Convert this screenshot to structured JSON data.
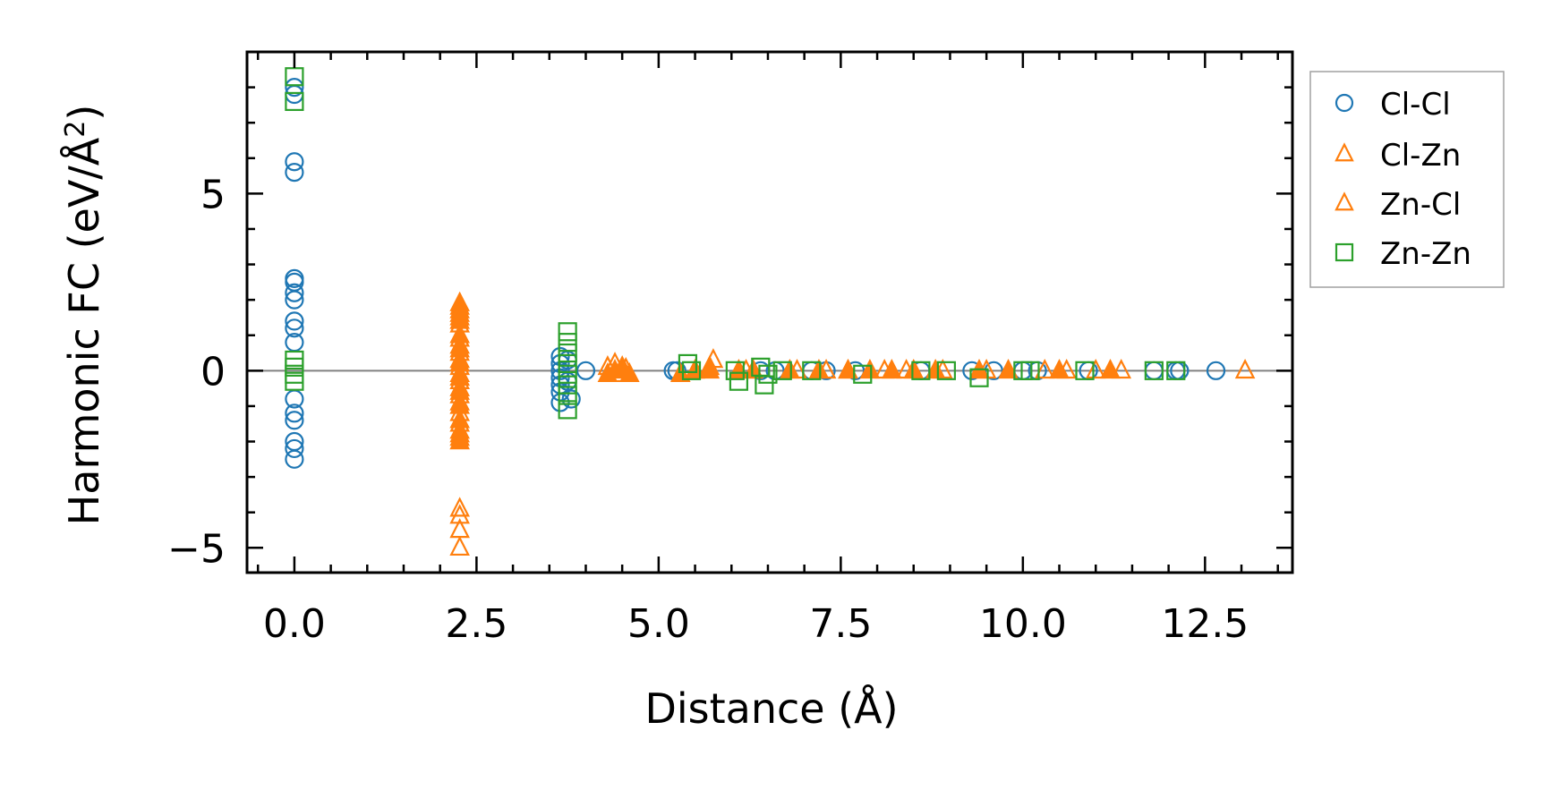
{
  "chart_data": {
    "type": "scatter",
    "title": "",
    "xlabel": "Distance (Å)",
    "ylabel_main": "Harmonic FC (eV/Å",
    "ylabel_sup": "2",
    "ylabel_end": ")",
    "xlim": [
      -0.65,
      13.7
    ],
    "ylim": [
      -5.7,
      9.0
    ],
    "xticks": [
      0.0,
      2.5,
      5.0,
      7.5,
      10.0,
      12.5
    ],
    "xtick_labels": [
      "0.0",
      "2.5",
      "5.0",
      "7.5",
      "10.0",
      "12.5"
    ],
    "yticks": [
      -5,
      0,
      5
    ],
    "ytick_labels": [
      "−5",
      "0",
      "5"
    ],
    "zero_line": 0,
    "legend_position": "outside-top-right",
    "colors": {
      "blue": "#1f77b4",
      "orange": "#ff7f0e",
      "green": "#2ca02c",
      "zero_line": "#808080"
    },
    "series": [
      {
        "name": "Cl-Cl",
        "marker": "circle",
        "color": "#1f77b4",
        "points": [
          [
            0.0,
            8.0
          ],
          [
            0.0,
            7.8
          ],
          [
            0.0,
            5.9
          ],
          [
            0.0,
            5.6
          ],
          [
            0.0,
            2.6
          ],
          [
            0.0,
            2.5
          ],
          [
            0.0,
            2.2
          ],
          [
            0.0,
            2.0
          ],
          [
            0.0,
            1.4
          ],
          [
            0.0,
            1.2
          ],
          [
            0.0,
            0.8
          ],
          [
            0.0,
            -0.8
          ],
          [
            0.0,
            -1.2
          ],
          [
            0.0,
            -1.4
          ],
          [
            0.0,
            -2.0
          ],
          [
            0.0,
            -2.2
          ],
          [
            0.0,
            -2.5
          ],
          [
            3.65,
            0.4
          ],
          [
            3.65,
            0.2
          ],
          [
            3.65,
            0.0
          ],
          [
            3.65,
            -0.2
          ],
          [
            3.65,
            -0.4
          ],
          [
            3.65,
            -0.6
          ],
          [
            3.65,
            -0.9
          ],
          [
            3.75,
            0.3
          ],
          [
            3.75,
            -0.3
          ],
          [
            3.8,
            -0.8
          ],
          [
            4.0,
            0.0
          ],
          [
            5.2,
            0.0
          ],
          [
            5.25,
            0.0
          ],
          [
            6.4,
            0.0
          ],
          [
            6.6,
            0.0
          ],
          [
            7.1,
            0.0
          ],
          [
            7.3,
            0.0
          ],
          [
            7.7,
            0.0
          ],
          [
            8.6,
            0.0
          ],
          [
            9.3,
            0.0
          ],
          [
            9.6,
            0.0
          ],
          [
            10.0,
            0.0
          ],
          [
            10.2,
            0.0
          ],
          [
            10.9,
            0.0
          ],
          [
            11.8,
            0.0
          ],
          [
            12.1,
            0.0
          ],
          [
            12.15,
            0.0
          ],
          [
            12.65,
            0.0
          ]
        ]
      },
      {
        "name": "Cl-Zn",
        "marker": "triangle",
        "color": "#ff7f0e",
        "points": [
          [
            2.27,
            1.9
          ],
          [
            2.27,
            1.7
          ],
          [
            2.27,
            1.5
          ],
          [
            2.27,
            1.3
          ],
          [
            2.27,
            0.9
          ],
          [
            2.27,
            0.7
          ],
          [
            2.27,
            0.5
          ],
          [
            2.27,
            0.3
          ],
          [
            2.27,
            0.1
          ],
          [
            2.27,
            -0.1
          ],
          [
            2.27,
            -0.3
          ],
          [
            2.27,
            -0.5
          ],
          [
            2.27,
            -0.7
          ],
          [
            2.27,
            -0.9
          ],
          [
            2.27,
            -1.2
          ],
          [
            2.27,
            -1.5
          ],
          [
            2.27,
            -1.7
          ],
          [
            2.27,
            -1.9
          ],
          [
            2.27,
            -3.9
          ],
          [
            2.27,
            -4.1
          ],
          [
            2.27,
            -4.5
          ],
          [
            2.27,
            -5.0
          ],
          [
            4.3,
            0.1
          ],
          [
            4.4,
            0.2
          ],
          [
            4.5,
            -0.1
          ],
          [
            4.55,
            0.05
          ],
          [
            5.5,
            0.0
          ],
          [
            5.7,
            0.1
          ],
          [
            5.75,
            0.3
          ],
          [
            6.2,
            0.0
          ],
          [
            6.9,
            0.0
          ],
          [
            7.3,
            0.0
          ],
          [
            7.6,
            0.0
          ],
          [
            8.1,
            0.0
          ],
          [
            8.4,
            0.0
          ],
          [
            8.9,
            0.0
          ],
          [
            9.5,
            0.0
          ],
          [
            10.3,
            0.0
          ],
          [
            10.6,
            0.0
          ],
          [
            11.0,
            0.0
          ],
          [
            11.35,
            0.0
          ],
          [
            13.05,
            0.0
          ]
        ]
      },
      {
        "name": "Zn-Cl",
        "marker": "triangle-filled",
        "color": "#ff7f0e",
        "points": [
          [
            2.27,
            1.8
          ],
          [
            2.27,
            1.6
          ],
          [
            2.27,
            1.4
          ],
          [
            2.27,
            1.0
          ],
          [
            2.27,
            0.6
          ],
          [
            2.27,
            0.2
          ],
          [
            2.27,
            -0.2
          ],
          [
            2.27,
            -0.6
          ],
          [
            2.27,
            -1.0
          ],
          [
            2.27,
            -1.4
          ],
          [
            2.27,
            -1.8
          ],
          [
            2.27,
            -2.0
          ],
          [
            4.3,
            -0.1
          ],
          [
            4.4,
            0.0
          ],
          [
            4.5,
            0.1
          ],
          [
            4.6,
            -0.1
          ],
          [
            5.3,
            -0.1
          ],
          [
            5.5,
            0.0
          ],
          [
            5.7,
            0.0
          ],
          [
            6.1,
            0.0
          ],
          [
            6.3,
            0.0
          ],
          [
            6.8,
            0.0
          ],
          [
            7.2,
            0.0
          ],
          [
            7.6,
            0.0
          ],
          [
            7.9,
            0.0
          ],
          [
            8.2,
            0.0
          ],
          [
            8.5,
            0.0
          ],
          [
            8.8,
            0.0
          ],
          [
            9.4,
            0.0
          ],
          [
            9.8,
            0.0
          ],
          [
            10.5,
            0.0
          ],
          [
            11.2,
            0.0
          ]
        ]
      },
      {
        "name": "Zn-Zn",
        "marker": "square",
        "color": "#2ca02c",
        "points": [
          [
            0.0,
            8.3
          ],
          [
            0.0,
            7.6
          ],
          [
            0.0,
            0.3
          ],
          [
            0.0,
            0.1
          ],
          [
            0.0,
            -0.1
          ],
          [
            0.0,
            -0.3
          ],
          [
            3.75,
            1.1
          ],
          [
            3.75,
            0.8
          ],
          [
            3.75,
            0.5
          ],
          [
            3.75,
            0.2
          ],
          [
            3.75,
            -0.1
          ],
          [
            3.75,
            -0.4
          ],
          [
            3.75,
            -0.7
          ],
          [
            3.75,
            -1.1
          ],
          [
            5.4,
            0.2
          ],
          [
            5.45,
            0.0
          ],
          [
            6.05,
            0.0
          ],
          [
            6.1,
            -0.3
          ],
          [
            6.4,
            0.1
          ],
          [
            6.45,
            -0.4
          ],
          [
            6.5,
            -0.1
          ],
          [
            6.7,
            0.0
          ],
          [
            7.1,
            0.0
          ],
          [
            7.8,
            -0.1
          ],
          [
            8.6,
            0.0
          ],
          [
            8.95,
            0.0
          ],
          [
            9.4,
            -0.2
          ],
          [
            10.0,
            0.0
          ],
          [
            10.1,
            0.0
          ],
          [
            10.85,
            0.0
          ],
          [
            11.8,
            0.0
          ],
          [
            12.1,
            0.0
          ]
        ]
      }
    ],
    "legend": [
      {
        "label": "Cl-Cl",
        "marker": "circle",
        "color": "#1f77b4"
      },
      {
        "label": "Cl-Zn",
        "marker": "triangle",
        "color": "#ff7f0e"
      },
      {
        "label": "Zn-Cl",
        "marker": "triangle",
        "color": "#ff7f0e"
      },
      {
        "label": "Zn-Zn",
        "marker": "square",
        "color": "#2ca02c"
      }
    ]
  }
}
